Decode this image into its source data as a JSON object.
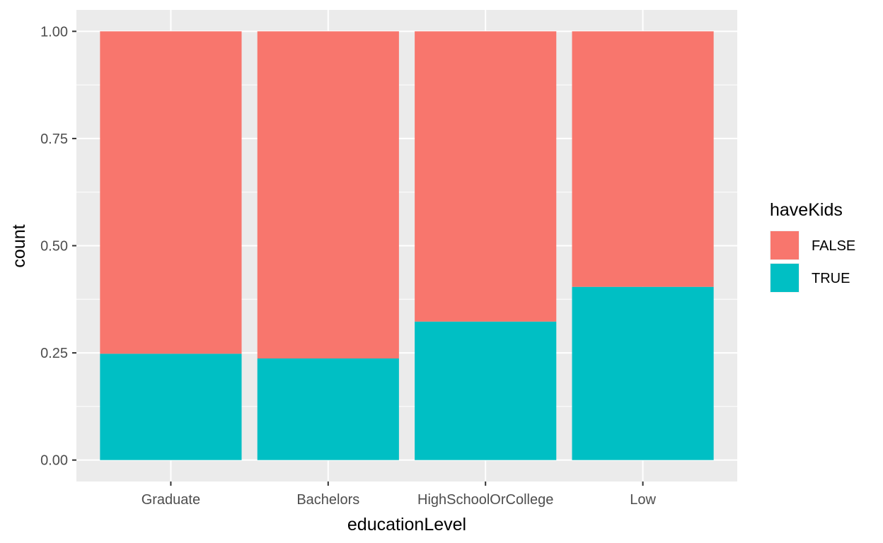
{
  "chart_data": {
    "type": "bar",
    "stacked": true,
    "categories": [
      "Graduate",
      "Bachelors",
      "HighSchoolOrCollege",
      "Low"
    ],
    "series": [
      {
        "name": "FALSE",
        "color": "#F8766D",
        "values": [
          0.752,
          0.763,
          0.677,
          0.596
        ]
      },
      {
        "name": "TRUE",
        "color": "#00BFC4",
        "values": [
          0.248,
          0.237,
          0.323,
          0.404
        ]
      }
    ],
    "title": "",
    "xlabel": "educationLevel",
    "ylabel": "count",
    "ylim": [
      -0.05,
      1.05
    ],
    "yticks": [
      0,
      0.25,
      0.5,
      0.75,
      1.0
    ],
    "ytick_labels": [
      "0.00",
      "0.25",
      "0.50",
      "0.75",
      "1.00"
    ],
    "legend": {
      "title": "haveKids",
      "position": "right",
      "entries": [
        "FALSE",
        "TRUE"
      ]
    },
    "grid": true,
    "panel_background": "#EBEBEB",
    "grid_color": "#FFFFFF"
  }
}
